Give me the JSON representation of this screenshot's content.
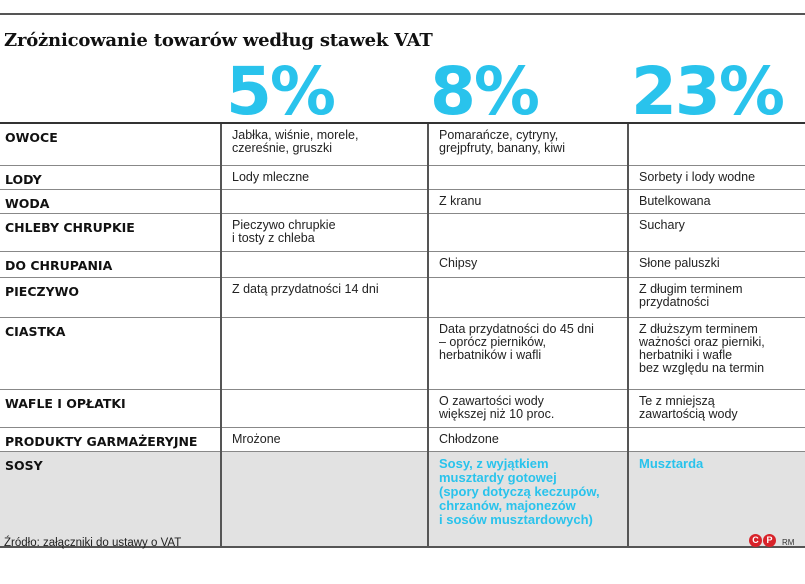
{
  "title": "Zróżnicowanie towarów według stawek VAT",
  "rates": [
    "5%",
    "8%",
    "23%"
  ],
  "rows": [
    {
      "category": "OWOCE",
      "v5": "Jabłka, wiśnie, morele,\nczereśnie, gruszki",
      "v8": "Pomarańcze, cytryny,\ngrejpfruty, banany, kiwi",
      "v23": ""
    },
    {
      "category": "LODY",
      "v5": "Lody mleczne",
      "v8": "",
      "v23": "Sorbety i lody wodne"
    },
    {
      "category": "WODA",
      "v5": "",
      "v8": "Z kranu",
      "v23": "Butelkowana"
    },
    {
      "category": "CHLEBY CHRUPKIE",
      "v5": "Pieczywo chrupkie\ni tosty z chleba",
      "v8": "",
      "v23": "Suchary"
    },
    {
      "category": "DO CHRUPANIA",
      "v5": "",
      "v8": "Chipsy",
      "v23": "Słone paluszki"
    },
    {
      "category": "PIECZYWO",
      "v5": "Z datą przydatności 14 dni",
      "v8": "",
      "v23": "Z długim terminem\nprzydatności"
    },
    {
      "category": "CIASTKA",
      "v5": "",
      "v8": "Data przydatności do 45 dni\n– oprócz pierników,\nherbatników i wafli",
      "v23": "Z dłuższym terminem\nważności oraz pierniki,\nherbatniki i wafle\nbez względu na termin"
    },
    {
      "category": "WAFLE I OPŁATKI",
      "v5": "",
      "v8": "O zawartości wody\nwiększej niż 10 proc.",
      "v23": "Te z mniejszą\nzawartością wody"
    },
    {
      "category": "PRODUKTY GARMAŻERYJNE",
      "v5": "Mrożone",
      "v8": "Chłodzone",
      "v23": ""
    },
    {
      "category": "SOSY",
      "v5": "",
      "v8": "Sosy, z wyjątkiem\nmusztardy gotowej\n(spory dotyczą keczupów,\nchrzanów, majonezów\ni sosów musztardowych)",
      "v23": "Musztarda"
    }
  ],
  "source": "Źródło: załączniki do ustawy o VAT",
  "logo": "CP",
  "author": "RM",
  "colors": {
    "accent": "#29c3ec",
    "logo": "#d8232a"
  }
}
